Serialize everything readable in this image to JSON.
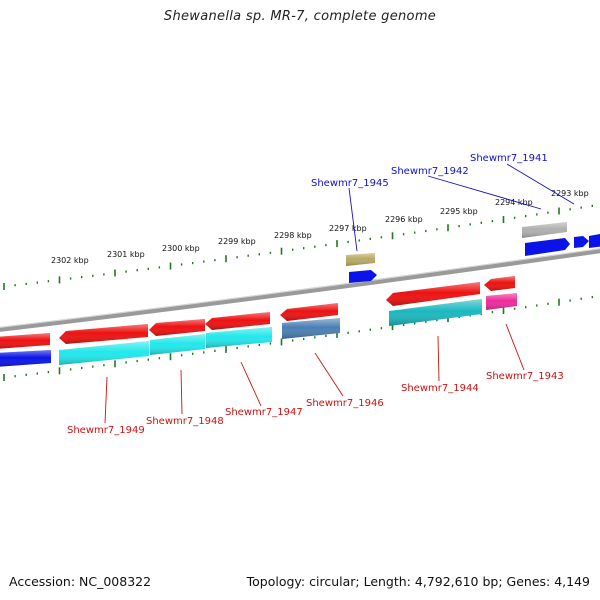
{
  "header": {
    "title": "Shewanella sp. MR-7, complete genome"
  },
  "footer": {
    "accession": "Accession: NC_008322",
    "summary": "Topology: circular; Length: 4,792,610 bp; Genes: 4,149"
  },
  "colors": {
    "backbone": "#8a8a8a",
    "tick": "#1f7a1f",
    "cds_forward": "#ee1111",
    "cds_reverse": "#0a14e8",
    "gene_label_top": "#1010cc",
    "gene_label_bottom": "#cc1111",
    "gene_cyan": "#22e8ec",
    "gene_teal": "#1bb8c0",
    "gene_steel": "#4a7fb5",
    "gene_pink": "#ee2a9c",
    "gene_olive": "#b8aa64",
    "gene_gray": "#b0b0b0"
  },
  "scale": {
    "unit": "kbp",
    "labels": [
      "2302 kbp",
      "2301 kbp",
      "2300 kbp",
      "2299 kbp",
      "2298 kbp",
      "2297 kbp",
      "2296 kbp",
      "2295 kbp",
      "2294 kbp",
      "2293 kbp"
    ]
  },
  "genes_top": [
    "Shewmr7_1945",
    "Shewmr7_1942",
    "Shewmr7_1941"
  ],
  "genes_bottom": [
    "Shewmr7_1949",
    "Shewmr7_1948",
    "Shewmr7_1947",
    "Shewmr7_1946",
    "Shewmr7_1944",
    "Shewmr7_1943"
  ]
}
